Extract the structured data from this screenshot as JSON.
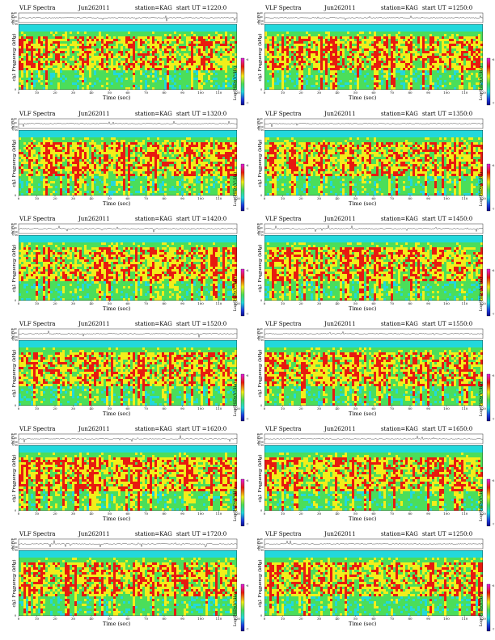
{
  "colors": {
    "magenta": "#e020e0",
    "red": "#e81a10",
    "yellow": "#f2ee1a",
    "green": "#4bde5a",
    "cyan": "#22d8dc",
    "blue": "#1e3cde",
    "dark_blue": "#0a0a8c"
  },
  "chart_data": [
    {
      "type": "heatmap",
      "title": "VLF Spectra",
      "date": "Jun262011",
      "station": "station=KAG",
      "start": "start  UT  =1220:0",
      "waveform_label": "ch1(V)",
      "waveform_ticks": [
        "0.30",
        "0.00",
        "-0.30"
      ],
      "ylabel": "Frequency  (kHz)",
      "ylabel_prefix": "ch1",
      "yticks": [
        "10",
        "8",
        "6",
        "4",
        "2",
        "0"
      ],
      "ylim": [
        0,
        10
      ],
      "xlabel": "Time  (sec)",
      "xticks": [
        "0",
        "10",
        "20",
        "30",
        "40",
        "50",
        "60",
        "70",
        "80",
        "90",
        "100",
        "110",
        "120"
      ],
      "xlim": [
        0,
        120
      ],
      "colorbar_label": "Log(PSD)(V²/Hz)",
      "colorbar_ticks": [
        "-6",
        "-7"
      ]
    },
    {
      "type": "heatmap",
      "title": "VLF Spectra",
      "date": "Jun262011",
      "station": "station=KAG",
      "start": "start  UT  =1250:0",
      "waveform_label": "ch1(V)",
      "waveform_ticks": [
        "0.30",
        "0.00",
        "-0.30"
      ],
      "ylabel": "Frequency  (kHz)",
      "ylabel_prefix": "ch1",
      "yticks": [
        "10",
        "8",
        "6",
        "4",
        "2",
        "0"
      ],
      "ylim": [
        0,
        10
      ],
      "xlabel": "Time  (sec)",
      "xticks": [
        "0",
        "10",
        "20",
        "30",
        "40",
        "50",
        "60",
        "70",
        "80",
        "90",
        "100",
        "110",
        "120"
      ],
      "xlim": [
        0,
        120
      ],
      "colorbar_label": "Log(PSD)(V²/Hz)",
      "colorbar_ticks": [
        "-6",
        "-7"
      ]
    },
    {
      "type": "heatmap",
      "title": "VLF Spectra",
      "date": "Jun262011",
      "station": "station=KAG",
      "start": "start  UT  =1320:0",
      "waveform_label": "ch1(V)",
      "waveform_ticks": [
        "0.30",
        "0.00",
        "-0.30"
      ],
      "ylabel": "Frequency  (kHz)",
      "ylabel_prefix": "ch1",
      "yticks": [
        "10",
        "8",
        "6",
        "4",
        "2",
        "0"
      ],
      "ylim": [
        0,
        10
      ],
      "xlabel": "Time  (sec)",
      "xticks": [
        "0",
        "10",
        "20",
        "30",
        "40",
        "50",
        "60",
        "70",
        "80",
        "90",
        "100",
        "110",
        "120"
      ],
      "xlim": [
        0,
        120
      ],
      "colorbar_label": "Log(PSD)(V²/Hz)",
      "colorbar_ticks": [
        "-6",
        "-7"
      ]
    },
    {
      "type": "heatmap",
      "title": "VLF Spectra",
      "date": "Jun262011",
      "station": "station=KAG",
      "start": "start  UT  =1350:0",
      "waveform_label": "ch1(V)",
      "waveform_ticks": [
        "0.30",
        "0.00",
        "-0.30"
      ],
      "ylabel": "Frequency  (kHz)",
      "ylabel_prefix": "ch1",
      "yticks": [
        "10",
        "8",
        "6",
        "4",
        "2",
        "0"
      ],
      "ylim": [
        0,
        10
      ],
      "xlabel": "Time  (sec)",
      "xticks": [
        "0",
        "10",
        "20",
        "30",
        "40",
        "50",
        "60",
        "70",
        "80",
        "90",
        "100",
        "110",
        "120"
      ],
      "xlim": [
        0,
        120
      ],
      "colorbar_label": "Log(PSD)(V²/Hz)",
      "colorbar_ticks": [
        "-6",
        "-7"
      ]
    },
    {
      "type": "heatmap",
      "title": "VLF Spectra",
      "date": "Jun262011",
      "station": "station=KAG",
      "start": "start  UT  =1420:0",
      "waveform_label": "ch1(V)",
      "waveform_ticks": [
        "0.30",
        "0.00",
        "-0.30"
      ],
      "ylabel": "Frequency  (kHz)",
      "ylabel_prefix": "ch1",
      "yticks": [
        "10",
        "8",
        "6",
        "4",
        "2",
        "0"
      ],
      "ylim": [
        0,
        10
      ],
      "xlabel": "Time  (sec)",
      "xticks": [
        "0",
        "10",
        "20",
        "30",
        "40",
        "50",
        "60",
        "70",
        "80",
        "90",
        "100",
        "110",
        "120"
      ],
      "xlim": [
        0,
        120
      ],
      "colorbar_label": "Log(PSD)(V²/Hz)",
      "colorbar_ticks": [
        "-6",
        "-7"
      ]
    },
    {
      "type": "heatmap",
      "title": "VLF Spectra",
      "date": "Jun262011",
      "station": "station=KAG",
      "start": "start  UT  =1450:0",
      "waveform_label": "ch1(V)",
      "waveform_ticks": [
        "0.30",
        "0.00",
        "-0.30"
      ],
      "ylabel": "Frequency  (kHz)",
      "ylabel_prefix": "ch1",
      "yticks": [
        "10",
        "8",
        "6",
        "4",
        "2",
        "0"
      ],
      "ylim": [
        0,
        10
      ],
      "xlabel": "Time  (sec)",
      "xticks": [
        "0",
        "10",
        "20",
        "30",
        "40",
        "50",
        "60",
        "70",
        "80",
        "90",
        "100",
        "110",
        "120"
      ],
      "xlim": [
        0,
        120
      ],
      "colorbar_label": "Log(PSD)(V²/Hz)",
      "colorbar_ticks": [
        "-6",
        "-7"
      ]
    },
    {
      "type": "heatmap",
      "title": "VLF Spectra",
      "date": "Jun262011",
      "station": "station=KAG",
      "start": "start  UT  =1520:0",
      "waveform_label": "ch1(V)",
      "waveform_ticks": [
        "0.30",
        "0.00",
        "-0.30"
      ],
      "ylabel": "Frequency  (kHz)",
      "ylabel_prefix": "ch1",
      "yticks": [
        "10",
        "8",
        "6",
        "4",
        "2",
        "0"
      ],
      "ylim": [
        0,
        10
      ],
      "xlabel": "Time  (sec)",
      "xticks": [
        "0",
        "10",
        "20",
        "30",
        "40",
        "50",
        "60",
        "70",
        "80",
        "90",
        "100",
        "110",
        "120"
      ],
      "xlim": [
        0,
        120
      ],
      "colorbar_label": "Log(PSD)(V²/Hz)",
      "colorbar_ticks": [
        "-6",
        "-7"
      ]
    },
    {
      "type": "heatmap",
      "title": "VLF Spectra",
      "date": "Jun262011",
      "station": "station=KAG",
      "start": "start  UT  =1550:0",
      "waveform_label": "ch1(V)",
      "waveform_ticks": [
        "0.30",
        "0.00",
        "-0.30"
      ],
      "ylabel": "Frequency  (kHz)",
      "ylabel_prefix": "ch1",
      "yticks": [
        "10",
        "8",
        "6",
        "4",
        "2",
        "0"
      ],
      "ylim": [
        0,
        10
      ],
      "xlabel": "Time  (sec)",
      "xticks": [
        "0",
        "10",
        "20",
        "30",
        "40",
        "50",
        "60",
        "70",
        "80",
        "90",
        "100",
        "110",
        "120"
      ],
      "xlim": [
        0,
        120
      ],
      "colorbar_label": "Log(PSD)(V²/Hz)",
      "colorbar_ticks": [
        "-6",
        "-7"
      ]
    },
    {
      "type": "heatmap",
      "title": "VLF Spectra",
      "date": "Jun262011",
      "station": "station=KAG",
      "start": "start  UT  =1620:0",
      "waveform_label": "ch1(V)",
      "waveform_ticks": [
        "0.30",
        "0.00",
        "-0.30"
      ],
      "ylabel": "Frequency  (kHz)",
      "ylabel_prefix": "ch1",
      "yticks": [
        "10",
        "8",
        "6",
        "4",
        "2",
        "0"
      ],
      "ylim": [
        0,
        10
      ],
      "xlabel": "Time  (sec)",
      "xticks": [
        "0",
        "10",
        "20",
        "30",
        "40",
        "50",
        "60",
        "70",
        "80",
        "90",
        "100",
        "110",
        "120"
      ],
      "xlim": [
        0,
        120
      ],
      "colorbar_label": "Log(PSD)(V²/Hz)",
      "colorbar_ticks": [
        "-6",
        "-7"
      ]
    },
    {
      "type": "heatmap",
      "title": "VLF Spectra",
      "date": "Jun262011",
      "station": "station=KAG",
      "start": "start  UT  =1650:0",
      "waveform_label": "ch1(V)",
      "waveform_ticks": [
        "0.30",
        "0.00",
        "-0.30"
      ],
      "ylabel": "Frequency  (kHz)",
      "ylabel_prefix": "ch1",
      "yticks": [
        "10",
        "8",
        "6",
        "4",
        "2",
        "0"
      ],
      "ylim": [
        0,
        10
      ],
      "xlabel": "Time  (sec)",
      "xticks": [
        "0",
        "10",
        "20",
        "30",
        "40",
        "50",
        "60",
        "70",
        "80",
        "90",
        "100",
        "110",
        "120"
      ],
      "xlim": [
        0,
        120
      ],
      "colorbar_label": "Log(PSD)(V²/Hz)",
      "colorbar_ticks": [
        "-6",
        "-7"
      ]
    },
    {
      "type": "heatmap",
      "title": "VLF Spectra",
      "date": "Jun262011",
      "station": "station=KAG",
      "start": "start  UT  =1720:0",
      "waveform_label": "ch1(V)",
      "waveform_ticks": [
        "0.30",
        "0.00",
        "-0.30"
      ],
      "ylabel": "Frequency  (kHz)",
      "ylabel_prefix": "ch1",
      "yticks": [
        "10",
        "8",
        "6",
        "4",
        "2",
        "0"
      ],
      "ylim": [
        0,
        10
      ],
      "xlabel": "Time  (sec)",
      "xticks": [
        "0",
        "10",
        "20",
        "30",
        "40",
        "50",
        "60",
        "70",
        "80",
        "90",
        "100",
        "110",
        "120"
      ],
      "xlim": [
        0,
        120
      ],
      "colorbar_label": "Log(PSD)(V²/Hz)",
      "colorbar_ticks": [
        "-6",
        "-7"
      ]
    },
    {
      "type": "heatmap",
      "title": "VLF Spectra",
      "date": "Jun262011",
      "station": "station=KAG",
      "start": "start  UT  =1250:0",
      "waveform_label": "ch1(V)",
      "waveform_ticks": [
        "0.30",
        "0.00",
        "-0.30"
      ],
      "ylabel": "Frequency  (kHz)",
      "ylabel_prefix": "ch1",
      "yticks": [
        "10",
        "8",
        "6",
        "4",
        "2",
        "0"
      ],
      "ylim": [
        0,
        10
      ],
      "xlabel": "Time  (sec)",
      "xticks": [
        "0",
        "10",
        "20",
        "30",
        "40",
        "50",
        "60",
        "70",
        "80",
        "90",
        "100",
        "110",
        "120"
      ],
      "xlim": [
        0,
        120
      ],
      "colorbar_label": "Log(PSD)(V²/Hz)",
      "colorbar_ticks": [
        "-6",
        "-7"
      ]
    }
  ]
}
